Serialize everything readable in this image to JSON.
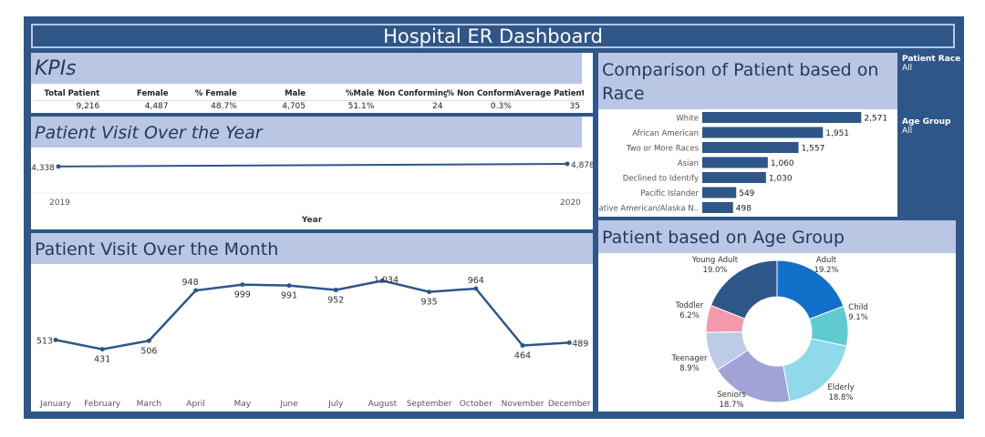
{
  "dashboard": {
    "title": "Hospital ER Dashboard"
  },
  "colors": {
    "frame": "#2e5688",
    "panel_header": "#b9c6e4",
    "bar": "#2e5688",
    "line": "#2e5688"
  },
  "kpis": {
    "title": "KPIs",
    "headers": [
      "Total Patient",
      "Female",
      "% Female",
      "Male",
      "%Male",
      "Non Conforming",
      "% Non Conformi..",
      "Average Patient.."
    ],
    "values": [
      "9,216",
      "4,487",
      "48.7%",
      "4,705",
      "51.1%",
      "24",
      "0.3%",
      "35"
    ]
  },
  "filters": [
    {
      "label": "Patient Race",
      "value": "All"
    },
    {
      "label": "Age Group",
      "value": "All"
    }
  ],
  "chart_data": [
    {
      "type": "line",
      "title": "Patient Visit Over the Year",
      "xlabel": "Year",
      "x": [
        "2019",
        "2020"
      ],
      "values": [
        4338,
        4878
      ],
      "labels": [
        "4,338",
        "4,878"
      ]
    },
    {
      "type": "line",
      "title": "Patient Visit Over the Month",
      "x": [
        "January",
        "February",
        "March",
        "April",
        "May",
        "June",
        "July",
        "August",
        "September",
        "October",
        "November",
        "December"
      ],
      "values": [
        513,
        431,
        506,
        948,
        999,
        991,
        952,
        1034,
        935,
        964,
        464,
        489
      ],
      "labels": [
        "513",
        "431",
        "506",
        "948",
        "999",
        "991",
        "952",
        "1,034",
        "935",
        "964",
        "464",
        "489"
      ]
    },
    {
      "type": "bar",
      "title": "Comparison of Patient based on Race",
      "categories": [
        "White",
        "African American",
        "Two or More Races",
        "Asian",
        "Declined to Identify",
        "Pacific Islander",
        "Native American/Alaska N.."
      ],
      "values": [
        2571,
        1951,
        1557,
        1060,
        1030,
        549,
        498
      ],
      "labels": [
        "2,571",
        "1,951",
        "1,557",
        "1,060",
        "1,030",
        "549",
        "498"
      ]
    },
    {
      "type": "pie",
      "title": "Patient based on Age Group",
      "categories": [
        "Adult",
        "Child",
        "Elderly",
        "Seniors",
        "Teenager",
        "Toddler",
        "Young Adult"
      ],
      "values": [
        19.2,
        9.1,
        18.8,
        18.7,
        8.9,
        6.2,
        19.0
      ],
      "labels": [
        "19.2%",
        "9.1%",
        "18.8%",
        "18.7%",
        "8.9%",
        "6.2%",
        "19.0%"
      ],
      "colors": [
        "#1170c9",
        "#5ecbd1",
        "#8fd9ea",
        "#a3a3d8",
        "#bccbe6",
        "#f29aac",
        "#2e5688"
      ]
    }
  ]
}
